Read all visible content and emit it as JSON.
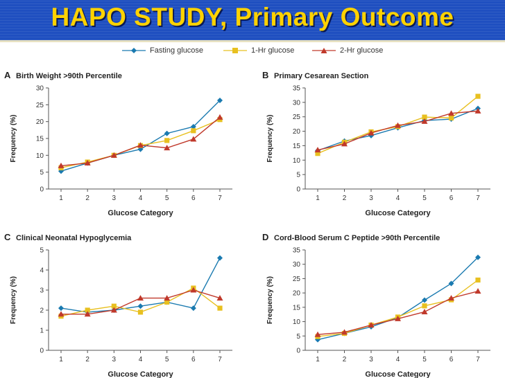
{
  "title": "HAPO STUDY, Primary Outcome",
  "colors": {
    "title_bg": "#1f4fc0",
    "title_text": "#ffd200",
    "fasting": "#1a7ab0",
    "one_hr": "#e8c020",
    "two_hr": "#c0392b",
    "axis": "#555555"
  },
  "legend": [
    {
      "key": "fasting",
      "label": "Fasting glucose",
      "marker": "diamond"
    },
    {
      "key": "one_hr",
      "label": "1-Hr glucose",
      "marker": "square"
    },
    {
      "key": "two_hr",
      "label": "2-Hr glucose",
      "marker": "triangle"
    }
  ],
  "chart_data": [
    {
      "letter": "A",
      "type": "line",
      "title": "Birth Weight >90th Percentile",
      "xlabel": "Glucose Category",
      "ylabel": "Frequency (%)",
      "x": [
        1,
        2,
        3,
        4,
        5,
        6,
        7
      ],
      "yticks": [
        0,
        5,
        10,
        15,
        20,
        25,
        30
      ],
      "ylim": [
        0,
        30
      ],
      "series": [
        {
          "key": "fasting",
          "name": "Fasting glucose",
          "values": [
            5.3,
            7.7,
            10.0,
            11.8,
            16.5,
            18.5,
            26.3
          ]
        },
        {
          "key": "one_hr",
          "name": "1-Hr glucose",
          "values": [
            6.3,
            8.0,
            10.0,
            12.9,
            14.4,
            17.3,
            20.6
          ]
        },
        {
          "key": "two_hr",
          "name": "2-Hr glucose",
          "values": [
            6.9,
            7.7,
            10.0,
            13.0,
            12.2,
            14.8,
            21.3
          ]
        }
      ]
    },
    {
      "letter": "B",
      "type": "line",
      "title": "Primary Cesarean Section",
      "xlabel": "Glucose Category",
      "ylabel": "Frequency (%)",
      "x": [
        1,
        2,
        3,
        4,
        5,
        6,
        7
      ],
      "yticks": [
        0,
        5,
        10,
        15,
        20,
        25,
        30,
        35
      ],
      "ylim": [
        0,
        35
      ],
      "series": [
        {
          "key": "fasting",
          "name": "Fasting glucose",
          "values": [
            13.3,
            16.6,
            18.5,
            21.2,
            23.7,
            24.2,
            27.9
          ]
        },
        {
          "key": "one_hr",
          "name": "1-Hr glucose",
          "values": [
            12.3,
            16.2,
            19.8,
            21.6,
            24.9,
            24.6,
            32.1
          ]
        },
        {
          "key": "two_hr",
          "name": "2-Hr glucose",
          "values": [
            13.5,
            15.6,
            19.4,
            22.0,
            23.4,
            26.2,
            27.0
          ]
        }
      ]
    },
    {
      "letter": "C",
      "type": "line",
      "title": "Clinical Neonatal Hypoglycemia",
      "xlabel": "Glucose Category",
      "ylabel": "Frequency (%)",
      "x": [
        1,
        2,
        3,
        4,
        5,
        6,
        7
      ],
      "yticks": [
        0,
        1,
        2,
        3,
        4,
        5
      ],
      "ylim": [
        0,
        5
      ],
      "series": [
        {
          "key": "fasting",
          "name": "Fasting glucose",
          "values": [
            2.1,
            1.9,
            2.0,
            2.2,
            2.4,
            2.1,
            4.6
          ]
        },
        {
          "key": "one_hr",
          "name": "1-Hr glucose",
          "values": [
            1.7,
            2.0,
            2.2,
            1.9,
            2.4,
            3.1,
            2.1
          ]
        },
        {
          "key": "two_hr",
          "name": "2-Hr glucose",
          "values": [
            1.8,
            1.8,
            2.0,
            2.6,
            2.6,
            3.0,
            2.6
          ]
        }
      ]
    },
    {
      "letter": "D",
      "type": "line",
      "title": "Cord-Blood Serum C Peptide >90th Percentile",
      "xlabel": "Glucose Category",
      "ylabel": "Frequency (%)",
      "x": [
        1,
        2,
        3,
        4,
        5,
        6,
        7
      ],
      "yticks": [
        0,
        5,
        10,
        15,
        20,
        25,
        30,
        35
      ],
      "ylim": [
        0,
        35
      ],
      "series": [
        {
          "key": "fasting",
          "name": "Fasting glucose",
          "values": [
            3.7,
            5.9,
            8.2,
            11.4,
            17.5,
            23.3,
            32.4
          ]
        },
        {
          "key": "one_hr",
          "name": "1-Hr glucose",
          "values": [
            4.8,
            5.9,
            8.8,
            11.6,
            15.5,
            17.6,
            24.5
          ]
        },
        {
          "key": "two_hr",
          "name": "2-Hr glucose",
          "values": [
            5.5,
            6.3,
            8.8,
            11.0,
            13.4,
            18.2,
            20.6
          ]
        }
      ]
    }
  ]
}
